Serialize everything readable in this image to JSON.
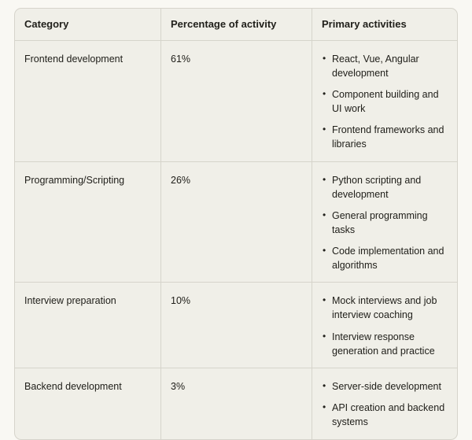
{
  "colors": {
    "page_background": "#f9f8f3",
    "table_background": "#f0efe8",
    "grid_border": "#d6d4cb",
    "text": "#21201b"
  },
  "table": {
    "headers": [
      "Category",
      "Percentage of activity",
      "Primary activities"
    ],
    "rows": [
      {
        "category": "Frontend development",
        "percentage": "61%",
        "activities": [
          "React, Vue, Angular development",
          "Component building and UI work",
          "Frontend frameworks and libraries"
        ]
      },
      {
        "category": "Programming/Scripting",
        "percentage": "26%",
        "activities": [
          "Python scripting and development",
          "General programming tasks",
          "Code implementation and algorithms"
        ]
      },
      {
        "category": "Interview preparation",
        "percentage": "10%",
        "activities": [
          "Mock interviews and job interview coaching",
          "Interview response generation and practice"
        ]
      },
      {
        "category": "Backend development",
        "percentage": "3%",
        "activities": [
          "Server-side development",
          "API creation and backend systems"
        ]
      }
    ]
  }
}
